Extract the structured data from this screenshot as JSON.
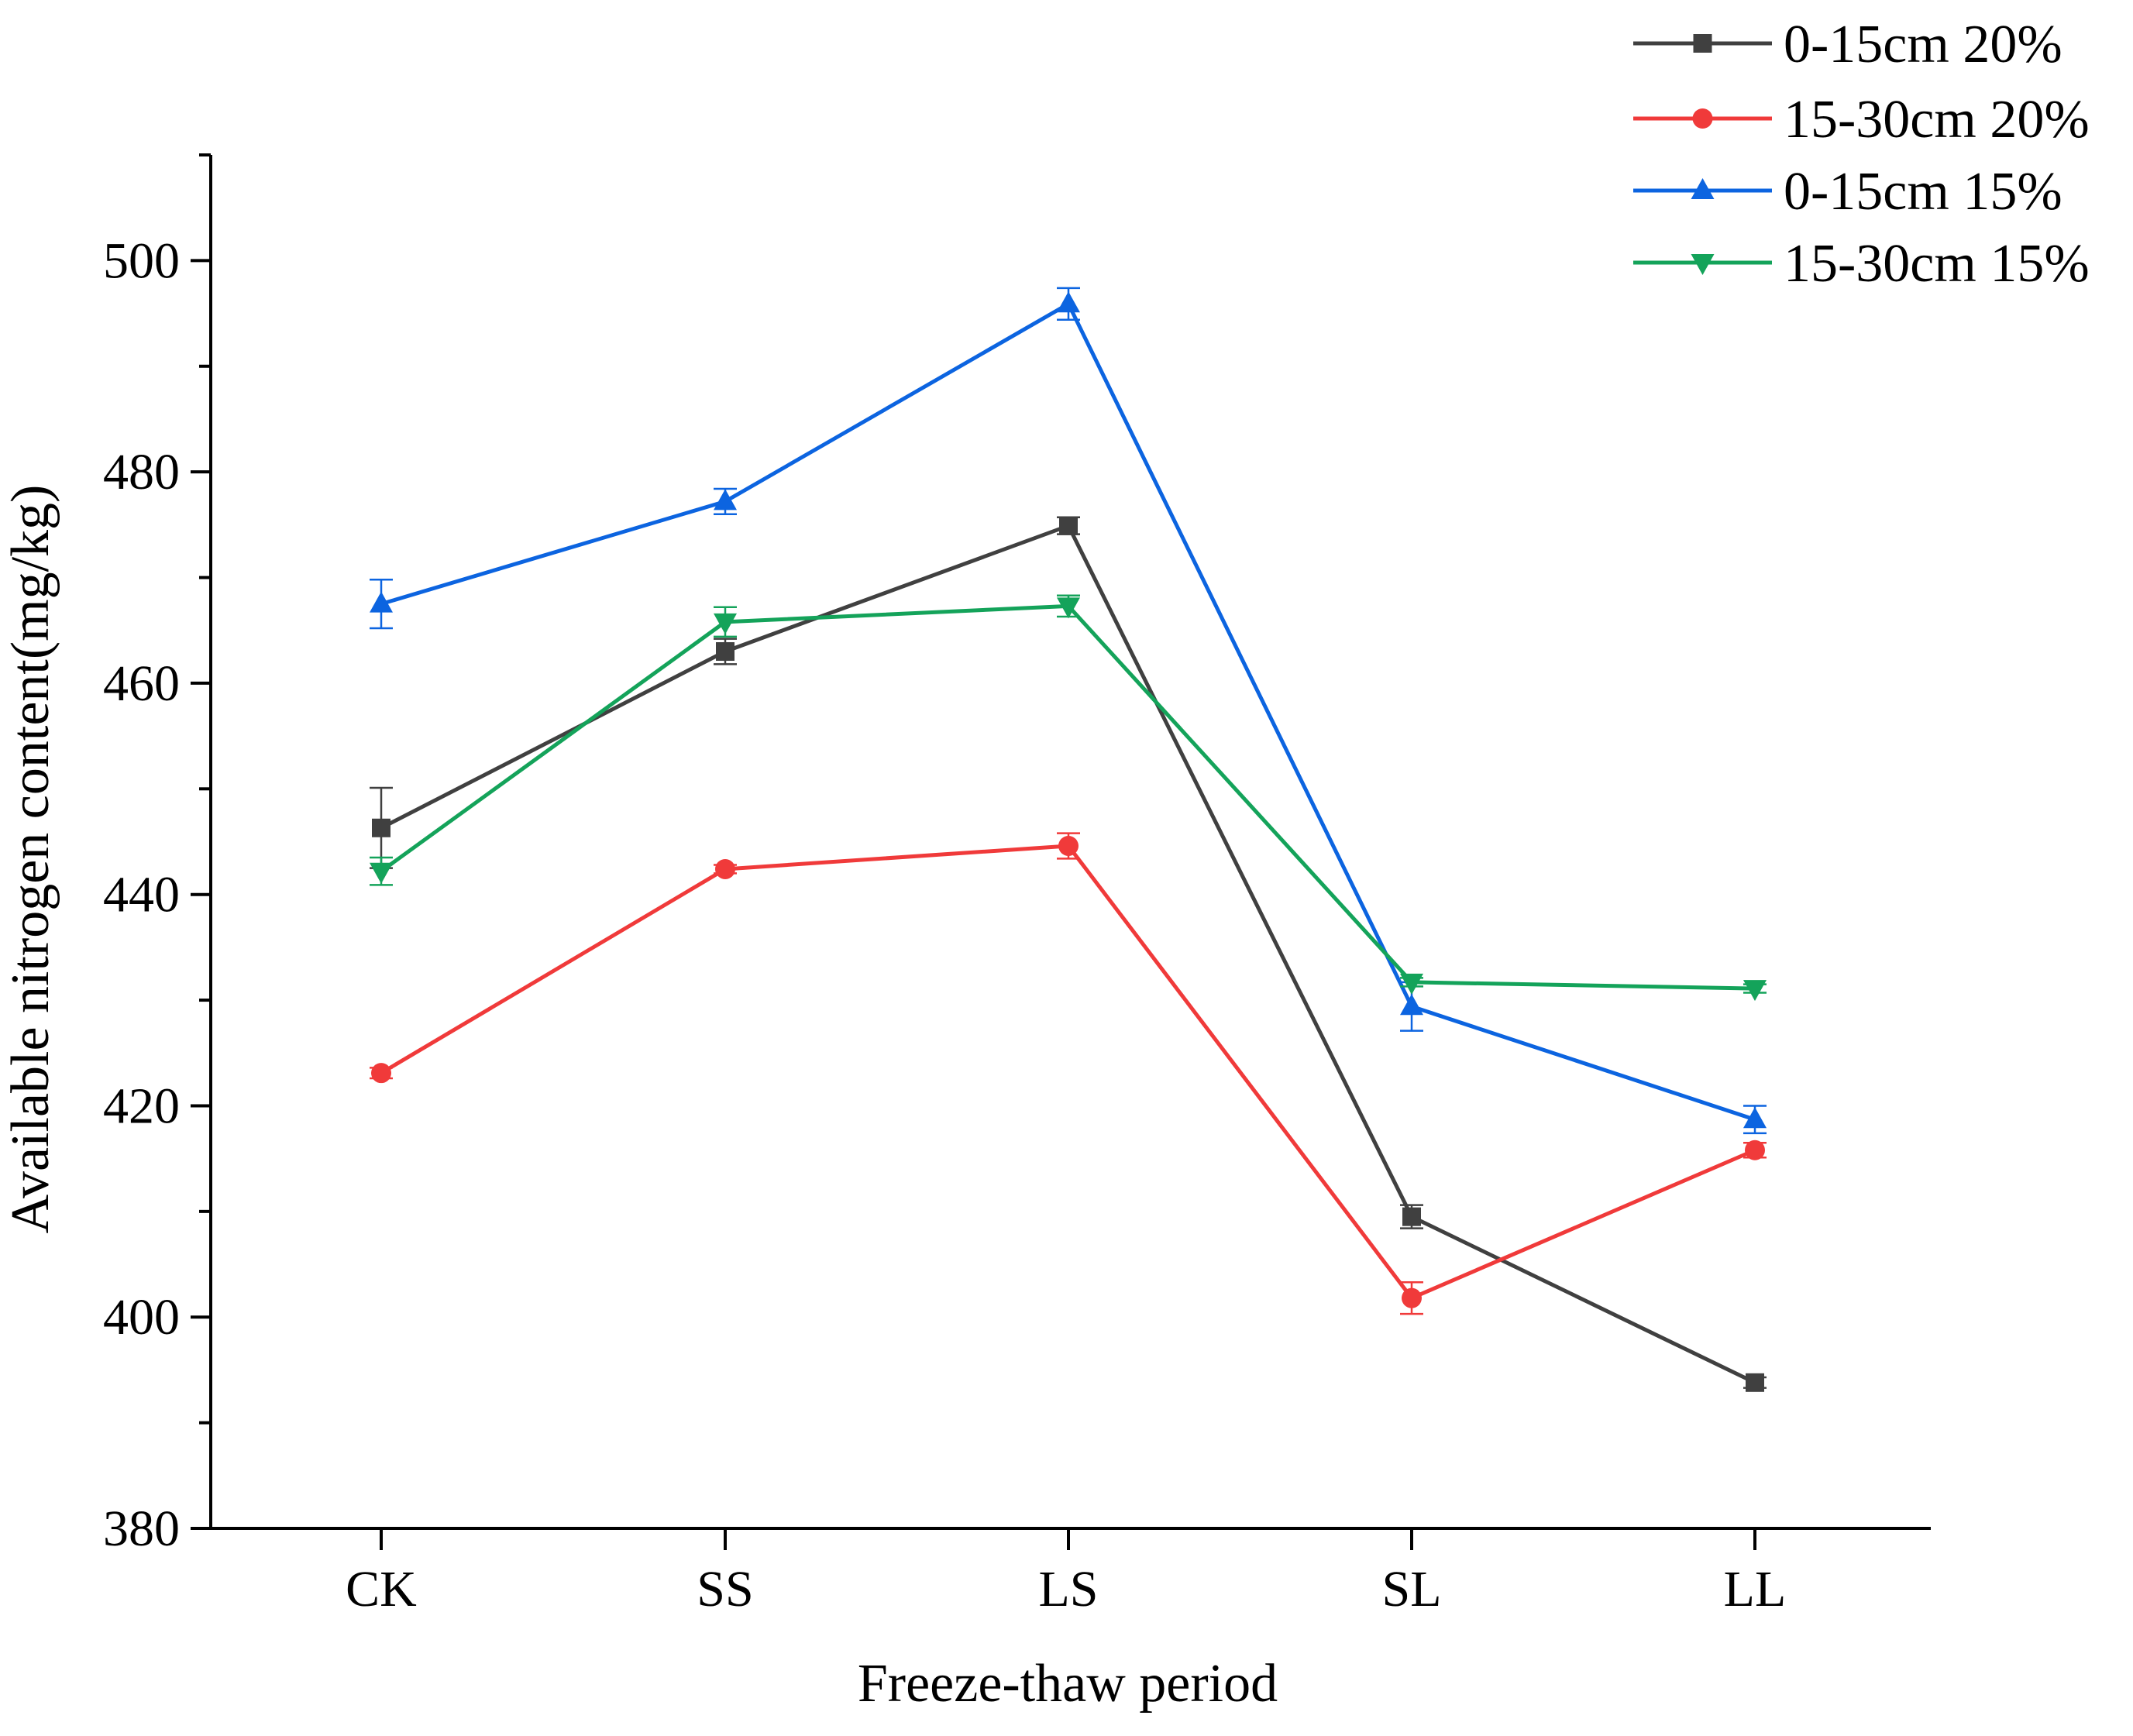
{
  "chart_data": {
    "type": "line",
    "title": "",
    "xlabel": "Freeze-thaw period",
    "ylabel": "Available nitrogen content(mg/kg)",
    "categories": [
      "CK",
      "SS",
      "LS",
      "SL",
      "LL"
    ],
    "ylim": [
      380,
      510
    ],
    "yticks": [
      380,
      400,
      420,
      440,
      460,
      480,
      500
    ],
    "grid": false,
    "legend_position": "top-right",
    "series": [
      {
        "name": "0-15cm 20%",
        "color": "#404040",
        "marker": "square",
        "values": [
          446.3,
          463.0,
          474.9,
          409.5,
          393.8
        ],
        "errors": [
          3.8,
          1.2,
          0.8,
          1.1,
          0.5
        ]
      },
      {
        "name": "15-30cm 20%",
        "color": "#f03a3a",
        "marker": "circle",
        "values": [
          423.1,
          442.4,
          444.6,
          401.8,
          415.8
        ],
        "errors": [
          0.5,
          0.4,
          1.2,
          1.5,
          0.7
        ]
      },
      {
        "name": "0-15cm 15%",
        "color": "#0c64e0",
        "marker": "triangle-up",
        "values": [
          467.5,
          477.2,
          495.9,
          429.4,
          418.7
        ],
        "errors": [
          2.3,
          1.2,
          1.5,
          2.3,
          1.3
        ]
      },
      {
        "name": "15-30cm 15%",
        "color": "#14a35a",
        "marker": "triangle-down",
        "values": [
          442.2,
          465.8,
          467.3,
          431.7,
          431.1
        ],
        "errors": [
          1.3,
          1.4,
          1.0,
          0.4,
          0.4
        ]
      }
    ]
  }
}
